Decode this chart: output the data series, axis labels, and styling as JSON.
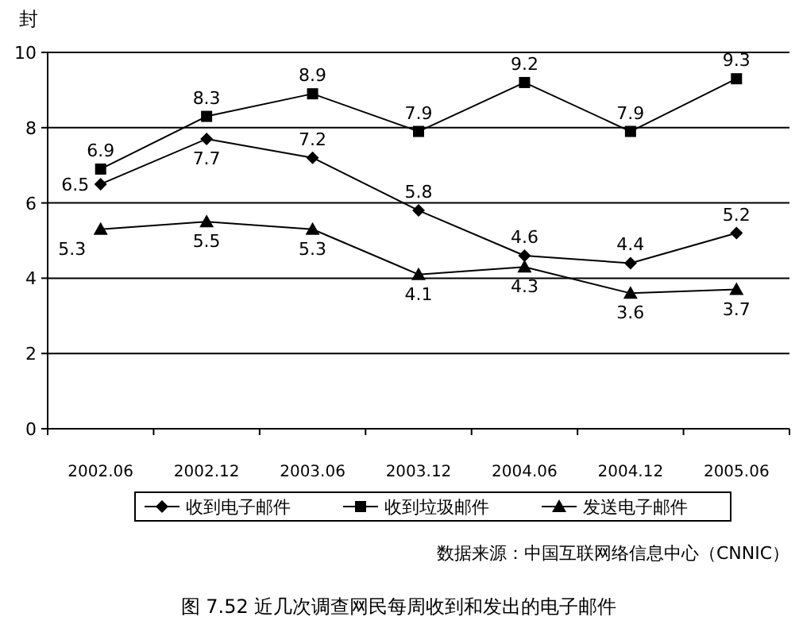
{
  "chart_data": {
    "type": "line",
    "title": "图 7.52 近几次调查网民每周收到和发出的电子邮件",
    "ylabel": "封",
    "categories": [
      "2002.06",
      "2002.12",
      "2003.06",
      "2003.12",
      "2004.06",
      "2004.12",
      "2005.06"
    ],
    "series": [
      {
        "name": "收到电子邮件",
        "color": "#000000",
        "marker": "diamond",
        "values": [
          6.5,
          7.7,
          7.2,
          5.8,
          4.6,
          4.4,
          5.2
        ]
      },
      {
        "name": "收到垃圾邮件",
        "color": "#000000",
        "marker": "square",
        "values": [
          6.9,
          8.3,
          8.9,
          7.9,
          9.2,
          7.9,
          9.3
        ]
      },
      {
        "name": "发送电子邮件",
        "color": "#000000",
        "marker": "triangle",
        "values": [
          5.3,
          5.5,
          5.3,
          4.1,
          4.3,
          3.6,
          3.7
        ]
      }
    ],
    "ylim": [
      0,
      10
    ],
    "yticks": [
      0,
      2,
      4,
      6,
      8,
      10
    ],
    "grid": "y",
    "legend": "bottom",
    "data_labels": true,
    "line_style": "solid",
    "annotations": [
      "数据来源：中国互联网络信息中心（CNNIC）"
    ]
  }
}
